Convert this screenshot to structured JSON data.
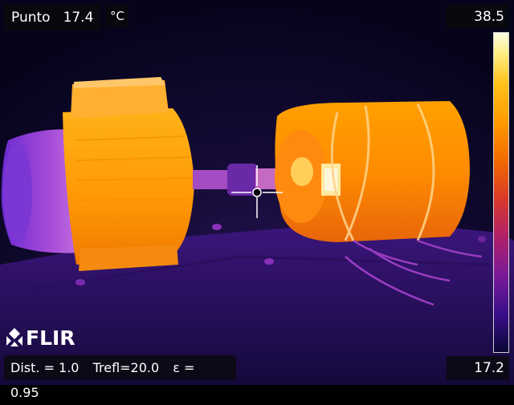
{
  "spot": {
    "label": "Punto",
    "value": "17.4"
  },
  "unit": "°C",
  "scale": {
    "max": "38.5",
    "min": "17.2"
  },
  "params": {
    "dist": "Dist. = 1.0",
    "trefl": "Trefl=20.0",
    "emissivity": "ε = 0.95"
  },
  "brand": "FLIR",
  "colors": {
    "hot": "#fff6c8",
    "warm": "#ffa200",
    "mid": "#e0401a",
    "cool": "#8a1fb0",
    "cold": "#0a0636"
  }
}
